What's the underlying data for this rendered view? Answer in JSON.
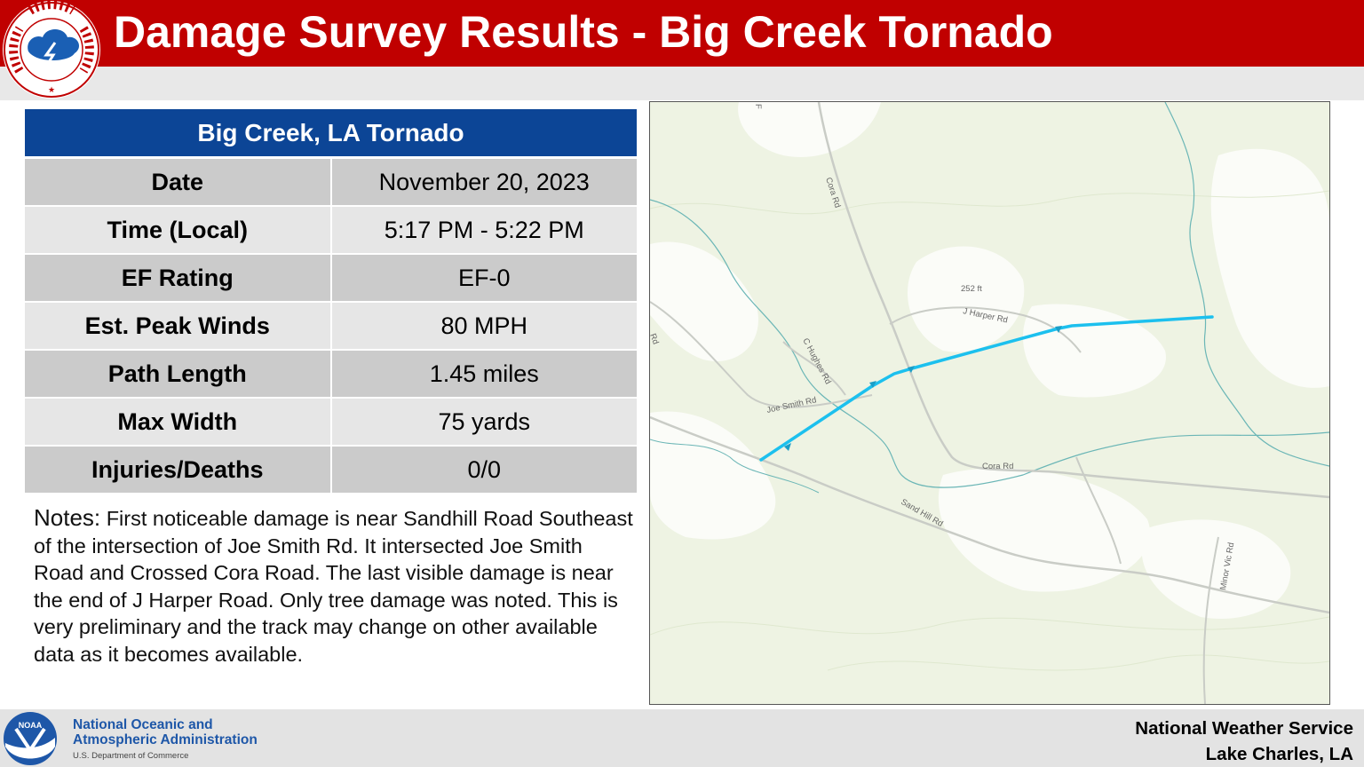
{
  "header": {
    "title": "Damage Survey Results - Big Creek Tornado",
    "logo_text": "NATIONAL WEATHER SERVICE"
  },
  "summary_table": {
    "heading": "Big Creek, LA Tornado",
    "rows": [
      {
        "label": "Date",
        "value": "November 20, 2023"
      },
      {
        "label": "Time (Local)",
        "value": "5:17 PM - 5:22 PM"
      },
      {
        "label": "EF Rating",
        "value": "EF-0"
      },
      {
        "label": "Est. Peak Winds",
        "value": "80 MPH"
      },
      {
        "label": "Path Length",
        "value": "1.45 miles"
      },
      {
        "label": "Max Width",
        "value": "75 yards"
      },
      {
        "label": "Injuries/Deaths",
        "value": "0/0"
      }
    ]
  },
  "notes": {
    "label": "Notes:",
    "text": "First noticeable damage is near Sandhill Road Southeast of the intersection of Joe Smith Rd. It intersected Joe Smith Road and Crossed Cora Road. The last visible damage is near the end of J Harper Road. Only tree damage was noted. This is very preliminary and the track may change on other available data as it becomes available."
  },
  "map": {
    "labels": {
      "cora_rd_north": "Cora Rd",
      "cora_rd_south": "Cora Rd",
      "j_harper_rd": "J Harper Rd",
      "elevation": "252 ft",
      "c_hughes_rd": "C Hughes Rd",
      "joe_smith_rd": "Joe Smith Rd",
      "sand_hill_rd": "Sand Hill Rd",
      "minor_vic_rd": "Minor Vic Rd",
      "edge_rd": "Rd",
      "edge_f": "F"
    },
    "track_color": "#1cc0ee",
    "road_color": "#c9ccc6",
    "stream_color": "#5fb3b3",
    "land_color": "#eef3e3"
  },
  "footer": {
    "agency_line1": "National Oceanic and",
    "agency_line2": "Atmospheric Administration",
    "department": "U.S. Department of Commerce",
    "noaa_mark": "NOAA",
    "office_line1": "National Weather Service",
    "office_line2": "Lake Charles, LA"
  }
}
